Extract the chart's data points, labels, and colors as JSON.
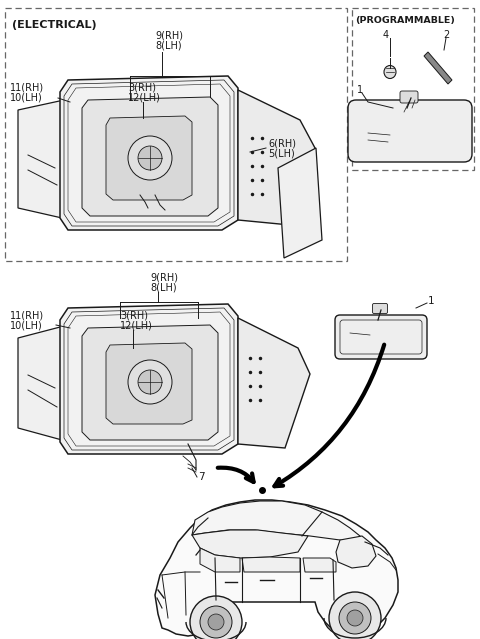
{
  "bg_color": "#ffffff",
  "lc": "#1a1a1a",
  "dc": "#666666",
  "elec_label": "(ELECTRICAL)",
  "prog_label": "(PROGRAMMABLE)",
  "top_label_9rh": "9(RH)",
  "top_label_8lh": "8(LH)",
  "left_label_11rh": "11(RH)",
  "left_label_10lh": "10(LH)",
  "mid_label_3rh": "3(RH)",
  "mid_label_12lh": "12(LH)",
  "right_label_6rh": "6(RH)",
  "right_label_5lh": "5(LH)",
  "label_1": "1",
  "label_2": "2",
  "label_4": "4",
  "label_7": "7",
  "fs": 7.0,
  "fsh": 8.0
}
